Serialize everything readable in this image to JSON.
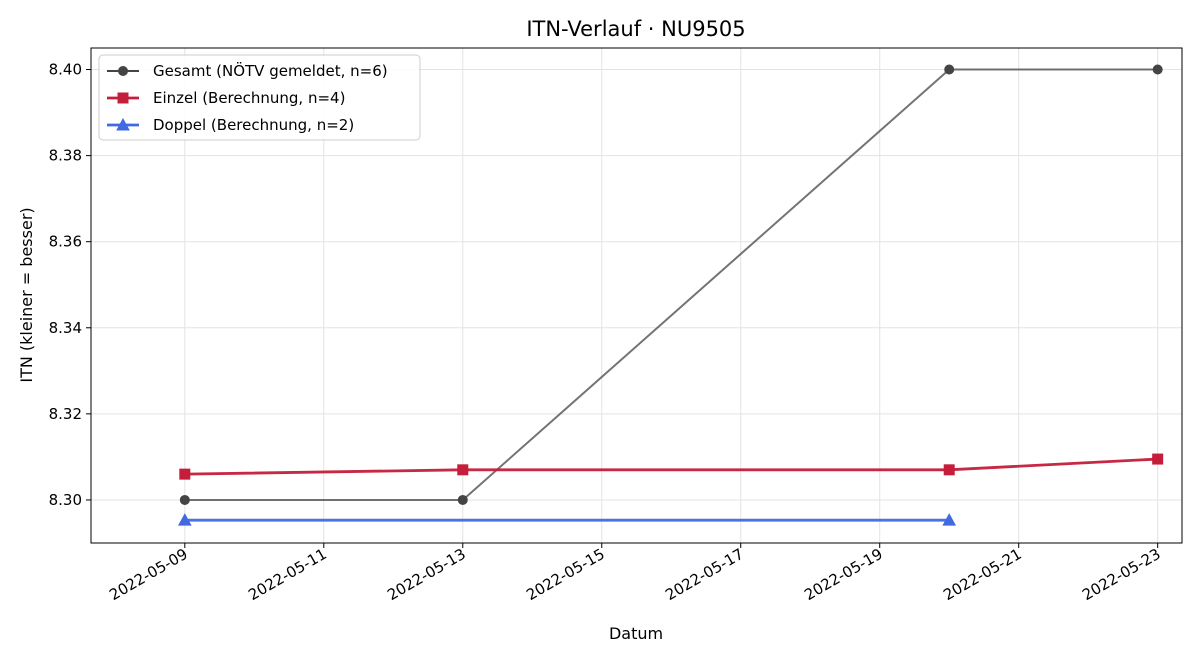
{
  "chart_data": {
    "type": "line",
    "title": "ITN-Verlauf · NU9505",
    "xlabel": "Datum",
    "ylabel": "ITN  (kleiner = besser)",
    "x_type": "date",
    "xlim": [
      "2022-05-08",
      "2022-05-23"
    ],
    "ylim": [
      8.29,
      8.405
    ],
    "x_ticks": [
      "2022-05-09",
      "2022-05-11",
      "2022-05-13",
      "2022-05-15",
      "2022-05-17",
      "2022-05-19",
      "2022-05-21",
      "2022-05-23"
    ],
    "y_ticks": [
      8.3,
      8.32,
      8.34,
      8.36,
      8.38,
      8.4
    ],
    "y_tick_labels": [
      "8.30",
      "8.32",
      "8.34",
      "8.36",
      "8.38",
      "8.40"
    ],
    "grid": true,
    "legend_position": "top-left",
    "series": [
      {
        "name": "Gesamt (NÖTV gemeldet, n=6)",
        "color": "#444444",
        "marker": "circle",
        "points": [
          {
            "x": "2022-05-09",
            "y": 8.3
          },
          {
            "x": "2022-05-13",
            "y": 8.3
          },
          {
            "x": "2022-05-20",
            "y": 8.4
          },
          {
            "x": "2022-05-23",
            "y": 8.4
          }
        ]
      },
      {
        "name": "Einzel (Berechnung, n=4)",
        "color": "#c41e3a",
        "marker": "square",
        "points": [
          {
            "x": "2022-05-09",
            "y": 8.306
          },
          {
            "x": "2022-05-13",
            "y": 8.307
          },
          {
            "x": "2022-05-20",
            "y": 8.307
          },
          {
            "x": "2022-05-23",
            "y": 8.3095
          }
        ]
      },
      {
        "name": "Doppel (Berechnung, n=2)",
        "color": "#4169e1",
        "marker": "triangle",
        "points": [
          {
            "x": "2022-05-09",
            "y": 8.2953
          },
          {
            "x": "2022-05-20",
            "y": 8.2953
          }
        ]
      }
    ]
  }
}
